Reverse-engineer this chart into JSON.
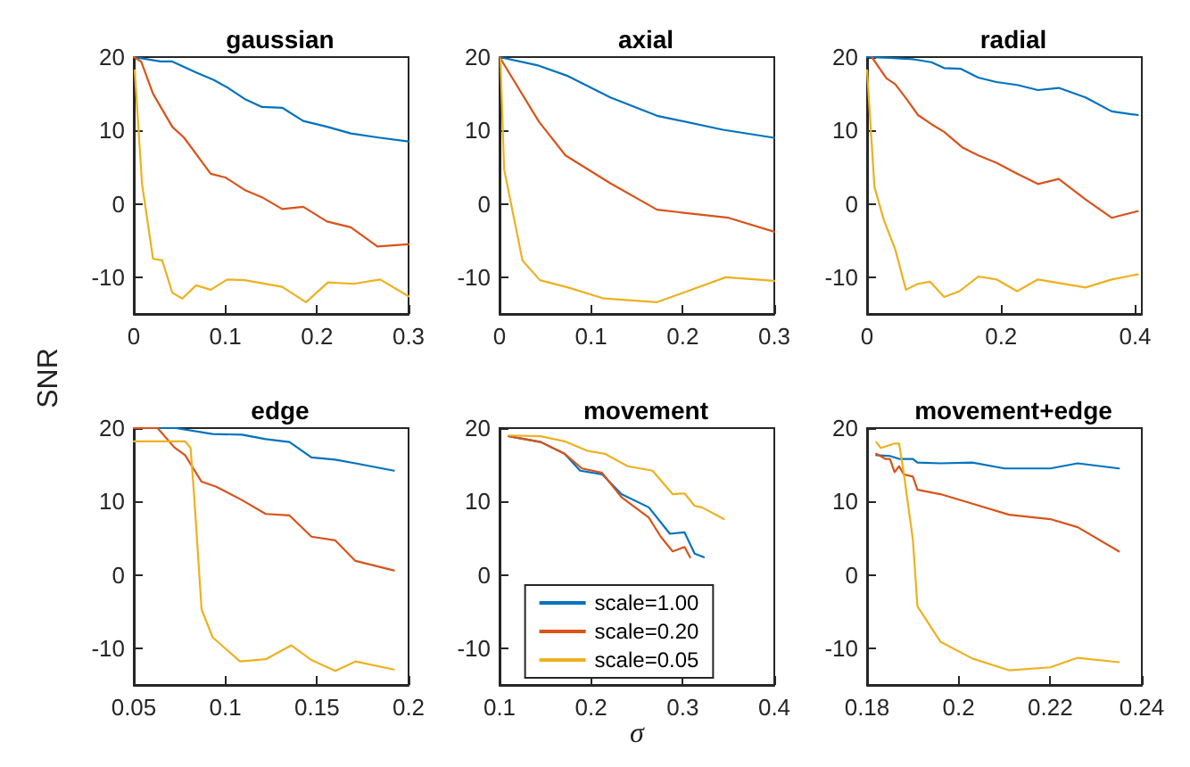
{
  "chart_data": [
    {
      "type": "line",
      "title": "gaussian",
      "ylabel": "SNR",
      "xlim": [
        0,
        0.3
      ],
      "xticks": [
        0,
        0.1,
        0.2,
        0.3
      ],
      "ylim": [
        -15,
        20
      ],
      "yticks": [
        -10,
        0,
        10,
        20
      ],
      "grid": false,
      "marker": "none",
      "line_style": "solid",
      "series": [
        {
          "color": "#0072bd",
          "x": [
            0,
            0.01,
            0.029,
            0.042,
            0.068,
            0.087,
            0.103,
            0.121,
            0.14,
            0.162,
            0.185,
            0.211,
            0.237,
            0.269,
            0.3
          ],
          "values": [
            20,
            19.8,
            19.4,
            19.4,
            17.9,
            16.9,
            15.8,
            14.3,
            13.2,
            13.1,
            11.3,
            10.5,
            9.6,
            9.0,
            8.5
          ]
        },
        {
          "color": "#d95319",
          "x": [
            0,
            0.008,
            0.021,
            0.042,
            0.055,
            0.084,
            0.1,
            0.121,
            0.14,
            0.162,
            0.185,
            0.211,
            0.237,
            0.266,
            0.3
          ],
          "values": [
            20,
            19.4,
            15,
            10.5,
            9,
            4.1,
            3.6,
            1.9,
            0.9,
            -0.7,
            -0.4,
            -2.4,
            -3.2,
            -5.8,
            -5.5
          ]
        },
        {
          "color": "#edb120",
          "x": [
            0.001,
            0.009,
            0.021,
            0.031,
            0.042,
            0.053,
            0.068,
            0.084,
            0.102,
            0.121,
            0.162,
            0.188,
            0.212,
            0.24,
            0.269,
            0.3
          ],
          "values": [
            18.2,
            2.7,
            -7.5,
            -7.7,
            -12.1,
            -12.9,
            -11.1,
            -11.7,
            -10.3,
            -10.4,
            -11.3,
            -13.4,
            -10.7,
            -10.9,
            -10.3,
            -12.6
          ]
        }
      ]
    },
    {
      "type": "line",
      "title": "axial",
      "xlim": [
        0,
        0.3
      ],
      "xticks": [
        0,
        0.1,
        0.2,
        0.3
      ],
      "ylim": [
        -15,
        20
      ],
      "yticks": [
        -10,
        0,
        10,
        20
      ],
      "grid": false,
      "marker": "none",
      "line_style": "solid",
      "series": [
        {
          "color": "#0072bd",
          "x": [
            0,
            0.041,
            0.075,
            0.121,
            0.172,
            0.244,
            0.3
          ],
          "values": [
            20,
            18.9,
            17.4,
            14.5,
            12.0,
            10.1,
            9.0
          ]
        },
        {
          "color": "#d95319",
          "x": [
            0,
            0.043,
            0.072,
            0.121,
            0.172,
            0.25,
            0.3
          ],
          "values": [
            20,
            11.2,
            6.6,
            2.8,
            -0.8,
            -1.9,
            -3.8
          ]
        },
        {
          "color": "#edb120",
          "x": [
            0.001,
            0.005,
            0.025,
            0.044,
            0.075,
            0.114,
            0.172,
            0.247,
            0.3
          ],
          "values": [
            19.7,
            4.7,
            -7.7,
            -10.4,
            -11.4,
            -12.9,
            -13.4,
            -10,
            -10.5
          ]
        }
      ]
    },
    {
      "type": "line",
      "title": "radial",
      "xlim": [
        0,
        0.41
      ],
      "xticks": [
        0,
        0.2,
        0.4
      ],
      "ylim": [
        -15,
        20
      ],
      "yticks": [
        -10,
        0,
        10,
        20
      ],
      "grid": false,
      "marker": "none",
      "line_style": "solid",
      "series": [
        {
          "color": "#0072bd",
          "x": [
            0,
            0.034,
            0.069,
            0.096,
            0.115,
            0.14,
            0.166,
            0.193,
            0.224,
            0.255,
            0.286,
            0.326,
            0.365,
            0.404
          ],
          "values": [
            20,
            19.9,
            19.7,
            19.3,
            18.5,
            18.4,
            17.2,
            16.6,
            16.2,
            15.5,
            15.8,
            14.5,
            12.6,
            12.1
          ]
        },
        {
          "color": "#d95319",
          "x": [
            0.007,
            0.029,
            0.042,
            0.058,
            0.076,
            0.097,
            0.115,
            0.142,
            0.166,
            0.193,
            0.224,
            0.255,
            0.286,
            0.326,
            0.365,
            0.404
          ],
          "values": [
            20,
            17.1,
            16.3,
            14.4,
            12.1,
            10.8,
            9.8,
            7.7,
            6.6,
            5.6,
            4.1,
            2.7,
            3.4,
            0.6,
            -1.9,
            -1.0
          ]
        },
        {
          "color": "#edb120",
          "x": [
            0,
            0.011,
            0.025,
            0.042,
            0.058,
            0.076,
            0.094,
            0.115,
            0.138,
            0.166,
            0.193,
            0.224,
            0.255,
            0.326,
            0.365,
            0.404
          ],
          "values": [
            18.2,
            2.3,
            -2.2,
            -6.2,
            -11.7,
            -10.9,
            -10.6,
            -12.7,
            -11.9,
            -9.9,
            -10.3,
            -11.9,
            -10.3,
            -11.4,
            -10.3,
            -9.6
          ]
        }
      ]
    },
    {
      "type": "line",
      "title": "edge",
      "xlim": [
        0.05,
        0.2
      ],
      "xticks": [
        0.05,
        0.1,
        0.15,
        0.2
      ],
      "ylim": [
        -15,
        20
      ],
      "yticks": [
        -10,
        0,
        10,
        20
      ],
      "grid": false,
      "marker": "none",
      "line_style": "solid",
      "series": [
        {
          "color": "#0072bd",
          "x": [
            0.05,
            0.073,
            0.093,
            0.109,
            0.122,
            0.135,
            0.147,
            0.16,
            0.171,
            0.192
          ],
          "values": [
            20,
            20,
            19.2,
            19.1,
            18.5,
            18.1,
            16.0,
            15.7,
            15.2,
            14.2
          ]
        },
        {
          "color": "#d95319",
          "x": [
            0.05,
            0.063,
            0.072,
            0.078,
            0.087,
            0.095,
            0.109,
            0.122,
            0.135,
            0.147,
            0.16,
            0.171,
            0.192
          ],
          "values": [
            20,
            20,
            17.4,
            16.3,
            12.7,
            12.0,
            10.2,
            8.3,
            8.1,
            5.2,
            4.7,
            1.9,
            0.6
          ]
        },
        {
          "color": "#edb120",
          "x": [
            0.05,
            0.078,
            0.081,
            0.083,
            0.087,
            0.093,
            0.108,
            0.122,
            0.136,
            0.147,
            0.16,
            0.171,
            0.192
          ],
          "values": [
            18.2,
            18.2,
            17.3,
            10.6,
            -4.7,
            -8.5,
            -11.8,
            -11.5,
            -9.6,
            -11.6,
            -13.1,
            -11.8,
            -12.9
          ]
        }
      ]
    },
    {
      "type": "line",
      "title": "movement",
      "xlabel": "σ",
      "xlim": [
        0.1,
        0.4
      ],
      "xticks": [
        0.1,
        0.2,
        0.3,
        0.4
      ],
      "ylim": [
        -15,
        20
      ],
      "yticks": [
        -10,
        0,
        10,
        20
      ],
      "grid": false,
      "marker": "none",
      "line_style": "solid",
      "legend": "bottom",
      "series": [
        {
          "name": "scale=1.00",
          "color": "#0072bd",
          "x": [
            0.11,
            0.145,
            0.171,
            0.188,
            0.212,
            0.233,
            0.263,
            0.286,
            0.302,
            0.313,
            0.323
          ],
          "values": [
            18.9,
            18.1,
            16.5,
            14.2,
            13.7,
            11.0,
            9.2,
            5.6,
            5.8,
            2.9,
            2.4
          ]
        },
        {
          "name": "scale=0.20",
          "color": "#d95319",
          "x": [
            0.11,
            0.145,
            0.171,
            0.19,
            0.212,
            0.233,
            0.263,
            0.276,
            0.289,
            0.302,
            0.308
          ],
          "values": [
            18.9,
            18.1,
            16.5,
            14.5,
            13.9,
            10.6,
            7.8,
            5.2,
            3.2,
            3.8,
            2.4
          ]
        },
        {
          "name": "scale=0.05",
          "color": "#edb120",
          "x": [
            0.11,
            0.145,
            0.171,
            0.196,
            0.215,
            0.24,
            0.267,
            0.289,
            0.302,
            0.313,
            0.321,
            0.345
          ],
          "values": [
            19.0,
            18.9,
            18.2,
            16.9,
            16.5,
            14.8,
            14.2,
            11.0,
            11.1,
            9.4,
            9.2,
            7.6
          ]
        }
      ]
    },
    {
      "type": "line",
      "title": "movement+edge",
      "xlim": [
        0.18,
        0.24
      ],
      "xticks": [
        0.18,
        0.2,
        0.22,
        0.24
      ],
      "ylim": [
        -15,
        20
      ],
      "yticks": [
        -10,
        0,
        10,
        20
      ],
      "grid": false,
      "marker": "none",
      "line_style": "solid",
      "series": [
        {
          "color": "#0072bd",
          "x": [
            0.182,
            0.185,
            0.187,
            0.19,
            0.191,
            0.196,
            0.203,
            0.21,
            0.22,
            0.226,
            0.235
          ],
          "values": [
            16.3,
            16.2,
            15.8,
            15.8,
            15.3,
            15.2,
            15.3,
            14.5,
            14.5,
            15.2,
            14.5
          ]
        },
        {
          "color": "#d95319",
          "x": [
            0.182,
            0.184,
            0.185,
            0.186,
            0.187,
            0.188,
            0.19,
            0.191,
            0.196,
            0.203,
            0.211,
            0.22,
            0.226,
            0.235
          ],
          "values": [
            16.5,
            15.8,
            15.8,
            14.0,
            14.8,
            13.7,
            13.4,
            11.6,
            11.0,
            9.7,
            8.2,
            7.6,
            6.5,
            3.2
          ]
        },
        {
          "color": "#edb120",
          "x": [
            0.182,
            0.183,
            0.185,
            0.186,
            0.187,
            0.188,
            0.19,
            0.191,
            0.196,
            0.203,
            0.211,
            0.22,
            0.226,
            0.235
          ],
          "values": [
            18.1,
            17.3,
            17.7,
            17.9,
            17.9,
            13.9,
            4.8,
            -4.3,
            -9.1,
            -11.4,
            -13.0,
            -12.6,
            -11.3,
            -11.9
          ]
        }
      ]
    }
  ]
}
